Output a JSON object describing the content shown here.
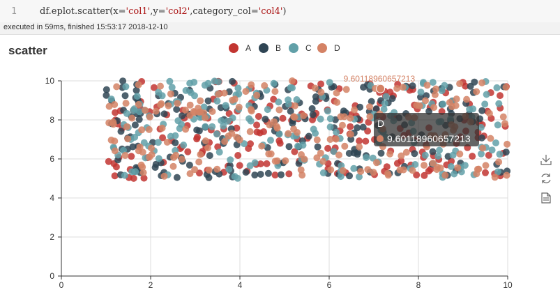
{
  "editor": {
    "line_number": "1",
    "code": {
      "prefix": "df.eplot.scatter(x=",
      "x_arg": "'col1'",
      "sep1": ",y=",
      "y_arg": "'col2'",
      "sep2": ",category_col=",
      "cat_arg": "'col4'",
      "suffix": ")"
    }
  },
  "status": {
    "text": "executed in 59ms, finished 15:53:17 2018-12-10"
  },
  "toolbox": {
    "icons": [
      "download-icon",
      "refresh-icon",
      "data-view-icon"
    ],
    "color": "#666666"
  },
  "chart_data": {
    "type": "scatter",
    "title": "scatter",
    "xlabel": "",
    "ylabel": "",
    "xlim": [
      0,
      10
    ],
    "ylim": [
      0,
      10
    ],
    "xticks": [
      0,
      2,
      4,
      6,
      8,
      10
    ],
    "yticks": [
      0,
      2,
      4,
      6,
      8,
      10
    ],
    "grid": true,
    "legend": {
      "position": "top-center",
      "entries": [
        "A",
        "B",
        "C",
        "D"
      ]
    },
    "colors": {
      "A": "#c23531",
      "B": "#2f4554",
      "C": "#61a0a8",
      "D": "#d48265"
    },
    "point_count_per_series": 200,
    "x_range": [
      1,
      10
    ],
    "y_range": [
      5,
      10
    ],
    "series": [
      {
        "name": "A",
        "seed": 11
      },
      {
        "name": "B",
        "seed": 23
      },
      {
        "name": "C",
        "seed": 37
      },
      {
        "name": "D",
        "seed": 53
      }
    ],
    "highlight": {
      "series": "D",
      "x": 7.15,
      "y": 9.60118960657213,
      "label": "9.60118960657213"
    },
    "tooltip": {
      "series": "D",
      "value": "9.60118960657213"
    }
  }
}
